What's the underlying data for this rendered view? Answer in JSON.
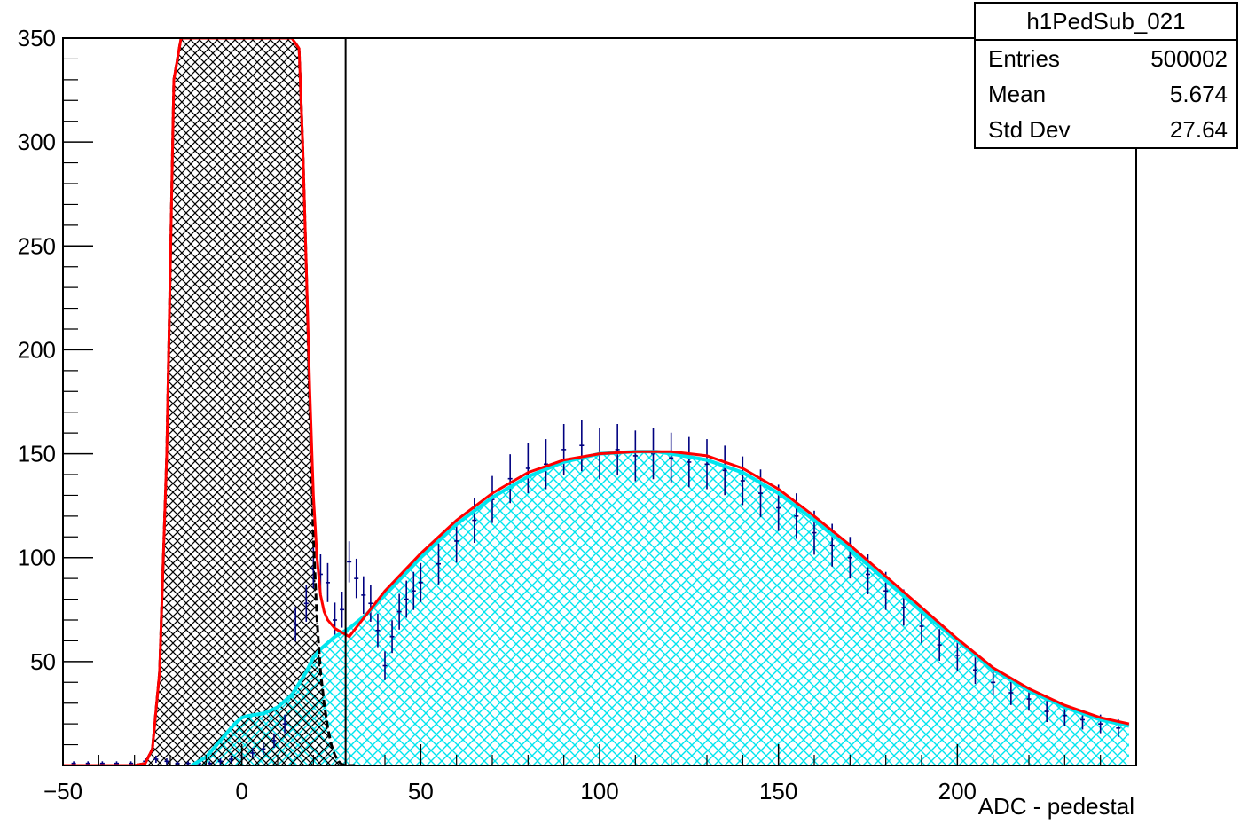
{
  "chart_data": {
    "type": "histogram",
    "xlabel": "ADC - pedestal",
    "ylabel": "",
    "xlim": [
      -50,
      250
    ],
    "ylim": [
      0,
      350
    ],
    "x_ticks": [
      "−50",
      "0",
      "50",
      "100",
      "150",
      "200"
    ],
    "y_ticks": [
      "50",
      "100",
      "150",
      "200",
      "250",
      "300",
      "350"
    ],
    "cut_line_x": 29,
    "stats": {
      "title": "h1PedSub_021",
      "rows": [
        {
          "label": "Entries",
          "value": "500002"
        },
        {
          "label": "Mean",
          "value": "5.674"
        },
        {
          "label": "Std Dev",
          "value": "27.64"
        }
      ]
    },
    "series": [
      {
        "role": "data points with error bars",
        "color": "#000080",
        "x": [
          -47,
          -43,
          -39,
          -35,
          -31,
          -27,
          -24,
          -21,
          -18,
          -15,
          -12,
          -9,
          -6,
          -3,
          0,
          3,
          6,
          9,
          12,
          15,
          18,
          20,
          22,
          24,
          26,
          28,
          30,
          32,
          34,
          36,
          38,
          40,
          42,
          44,
          46,
          48,
          50,
          55,
          60,
          65,
          70,
          75,
          80,
          85,
          90,
          95,
          100,
          105,
          110,
          115,
          120,
          125,
          130,
          135,
          140,
          145,
          150,
          155,
          160,
          165,
          170,
          175,
          180,
          185,
          190,
          195,
          200,
          205,
          210,
          215,
          220,
          225,
          230,
          235,
          240,
          245
        ],
        "y": [
          1,
          1,
          1,
          1,
          1,
          2,
          3,
          2,
          1,
          1,
          1,
          1,
          2,
          3,
          4,
          6,
          8,
          12,
          20,
          68,
          78,
          95,
          92,
          88,
          70,
          75,
          98,
          90,
          82,
          78,
          65,
          48,
          62,
          74,
          80,
          84,
          88,
          97,
          108,
          118,
          128,
          138,
          143,
          145,
          152,
          154,
          150,
          152,
          149,
          150,
          148,
          146,
          145,
          142,
          137,
          131,
          124,
          120,
          112,
          106,
          100,
          92,
          84,
          76,
          67,
          58,
          53,
          46,
          40,
          35,
          32,
          26,
          24,
          22,
          20,
          18
        ]
      },
      {
        "role": "total fit",
        "color": "#ff0000",
        "x": [
          -50,
          -30,
          -27,
          -25,
          -23,
          -21,
          -19,
          -17,
          -15,
          -10,
          0,
          10,
          14,
          16,
          17,
          18,
          19,
          20,
          21,
          22,
          23,
          24,
          25,
          26,
          28,
          30,
          40,
          50,
          60,
          70,
          80,
          90,
          100,
          110,
          116,
          120,
          130,
          140,
          150,
          160,
          170,
          180,
          190,
          200,
          210,
          220,
          230,
          240,
          248
        ],
        "y": [
          0,
          0,
          1,
          8,
          45,
          150,
          330,
          350,
          350,
          350,
          350,
          350,
          350,
          345,
          300,
          240,
          180,
          130,
          100,
          82,
          74,
          70,
          68,
          66,
          64,
          62,
          84,
          102,
          118,
          131,
          141,
          147,
          150,
          151,
          151,
          151,
          149,
          143,
          133,
          120,
          106,
          91,
          76,
          61,
          47,
          37,
          29,
          23,
          20
        ]
      },
      {
        "role": "pedestal component",
        "color": "#000000",
        "fill": "black hatched",
        "x": [
          -50,
          -30,
          -27,
          -25,
          -23,
          -21,
          -19,
          -17,
          -15,
          -10,
          0,
          10,
          14,
          16,
          17,
          18,
          19,
          20,
          21,
          22,
          23,
          24,
          25,
          26,
          27,
          28,
          29,
          30,
          32
        ],
        "y": [
          0,
          0,
          1,
          8,
          45,
          150,
          330,
          350,
          350,
          350,
          350,
          350,
          350,
          345,
          300,
          240,
          170,
          110,
          70,
          45,
          30,
          18,
          10,
          5,
          2,
          0.5,
          0.1,
          0,
          0
        ]
      },
      {
        "role": "signal component",
        "color": "#00e5ee",
        "fill": "cyan hatched",
        "x": [
          -14,
          -10,
          -6,
          -2,
          0,
          2,
          6,
          10,
          14,
          18,
          20,
          22,
          24,
          26,
          28,
          30,
          35,
          40,
          50,
          60,
          70,
          80,
          90,
          100,
          110,
          116,
          120,
          130,
          140,
          150,
          160,
          170,
          180,
          190,
          200,
          210,
          220,
          230,
          240,
          248
        ],
        "y": [
          0,
          4,
          12,
          20,
          23,
          24,
          25,
          28,
          34,
          45,
          52,
          56,
          59,
          62,
          64,
          66,
          73,
          82,
          100,
          116,
          129,
          139,
          146,
          150,
          151,
          151,
          150,
          147,
          141,
          131,
          118,
          104,
          89,
          74,
          60,
          46,
          36,
          28,
          22,
          19
        ]
      }
    ]
  }
}
